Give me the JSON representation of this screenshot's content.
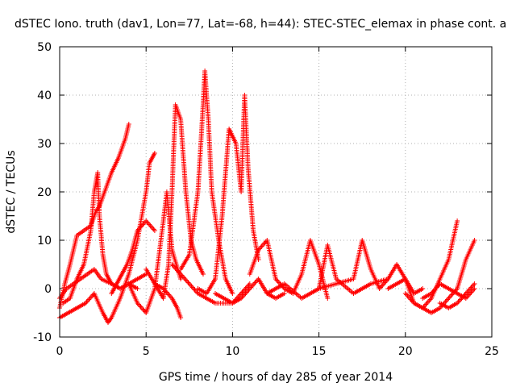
{
  "chart_data": {
    "type": "scatter",
    "title": "dSTEC Iono. truth (dav1, Lon=77, Lat=-68, h=44): STEC-STEC_elemax in phase cont. a",
    "xlabel": "GPS time / hours of day 285 of year 2014",
    "ylabel": "dSTEC  / TECUs",
    "xlim": [
      0,
      25
    ],
    "ylim": [
      -10,
      50
    ],
    "xticks": [
      0,
      5,
      10,
      15,
      20,
      25
    ],
    "yticks": [
      -10,
      0,
      10,
      20,
      30,
      40,
      50
    ],
    "grid": true,
    "marker": "+",
    "color": "#ff0000",
    "series": [
      {
        "x": [
          0.0,
          0.3,
          0.6,
          0.8,
          1.0,
          1.4,
          1.8,
          2.1,
          2.3,
          2.6,
          3.0,
          3.4,
          3.8,
          4.0
        ],
        "y": [
          -4,
          1,
          5,
          8,
          11,
          12,
          13,
          16,
          17,
          20,
          24,
          27,
          31,
          34
        ]
      },
      {
        "x": [
          0.2,
          0.6,
          1.0,
          1.4,
          1.8,
          2.0,
          2.2,
          2.3,
          2.5,
          2.7,
          3.0,
          3.5,
          4.0,
          4.5
        ],
        "y": [
          -3,
          -2,
          2,
          5,
          12,
          20,
          24,
          15,
          7,
          3,
          1,
          0,
          1,
          0
        ]
      },
      {
        "x": [
          0.0,
          0.5,
          1.0,
          1.5,
          2.0,
          2.5,
          2.8,
          3.0,
          3.5,
          4.0,
          4.5,
          5.0,
          5.2,
          5.5
        ],
        "y": [
          -6,
          -5,
          -4,
          -3,
          -1,
          -5,
          -7,
          -6,
          -2,
          3,
          10,
          20,
          26,
          28
        ]
      },
      {
        "x": [
          0.0,
          0.4,
          0.8,
          1.2,
          1.6,
          2.0,
          2.4,
          3.0,
          3.5,
          4.0,
          4.5,
          5.0
        ],
        "y": [
          -2,
          0,
          1,
          2,
          3,
          4,
          2,
          1,
          0,
          1,
          2,
          3
        ]
      },
      {
        "x": [
          3.0,
          3.3,
          3.6,
          3.9,
          4.2,
          4.5,
          5.0,
          5.5
        ],
        "y": [
          -1,
          1,
          3,
          5,
          8,
          12,
          14,
          12
        ]
      },
      {
        "x": [
          4.0,
          4.5,
          5.0,
          5.5,
          6.0,
          6.2,
          6.5,
          7.0
        ],
        "y": [
          1,
          -3,
          -5,
          0,
          14,
          20,
          8,
          2
        ]
      },
      {
        "x": [
          5.0,
          5.5,
          6.0,
          6.3,
          6.5,
          6.7,
          7.0,
          7.3,
          7.6,
          7.9,
          8.3
        ],
        "y": [
          4,
          1,
          -2,
          5,
          20,
          38,
          35,
          20,
          10,
          6,
          3
        ]
      },
      {
        "x": [
          5.5,
          6.0,
          6.5,
          6.8,
          7.0
        ],
        "y": [
          1,
          0,
          -2,
          -4,
          -6
        ]
      },
      {
        "x": [
          7.0,
          7.5,
          8.0,
          8.3,
          8.4,
          8.6,
          8.8,
          9.2,
          9.6,
          10.0
        ],
        "y": [
          4,
          7,
          20,
          38,
          45,
          35,
          20,
          10,
          2,
          -1
        ]
      },
      {
        "x": [
          8.0,
          8.5,
          9.0,
          9.4,
          9.8,
          10.2,
          10.5,
          10.7,
          10.9,
          11.2,
          11.5
        ],
        "y": [
          0,
          -1,
          2,
          15,
          33,
          30,
          20,
          40,
          25,
          12,
          6
        ]
      },
      {
        "x": [
          6.5,
          7.0,
          7.5,
          8.0,
          8.5,
          9.0,
          9.5,
          10.0,
          10.5,
          11.0
        ],
        "y": [
          5,
          3,
          1,
          -1,
          -2,
          -3,
          -3,
          -3,
          -1,
          1
        ]
      },
      {
        "x": [
          9.0,
          9.5,
          10.0,
          10.5,
          11.0,
          11.5,
          12.0,
          12.5,
          13.0
        ],
        "y": [
          -1,
          -2,
          -3,
          -2,
          0,
          2,
          -1,
          -2,
          -1
        ]
      },
      {
        "x": [
          11.0,
          11.5,
          12.0,
          12.5,
          13.0,
          13.5,
          14.0,
          14.5,
          15.0,
          15.5
        ],
        "y": [
          3,
          8,
          10,
          2,
          0,
          -1,
          3,
          10,
          5,
          -2
        ]
      },
      {
        "x": [
          12.0,
          13.0,
          14.0,
          15.0,
          16.0,
          17.0,
          17.5,
          18.0,
          18.5,
          19.0
        ],
        "y": [
          -1,
          1,
          -2,
          0,
          1,
          2,
          10,
          4,
          0,
          2
        ]
      },
      {
        "x": [
          15.0,
          15.5,
          16.0,
          17.0,
          18.0,
          19.0,
          19.5,
          20.0,
          20.5,
          21.0
        ],
        "y": [
          0,
          9,
          2,
          -1,
          1,
          2,
          5,
          2,
          -1,
          0
        ]
      },
      {
        "x": [
          19.0,
          19.5,
          20.0,
          20.5,
          21.0,
          21.5,
          22.0,
          22.5,
          23.0
        ],
        "y": [
          0,
          1,
          2,
          -3,
          -4,
          -2,
          2,
          6,
          14
        ]
      },
      {
        "x": [
          20.0,
          20.5,
          21.0,
          21.5,
          22.0,
          22.5,
          23.0,
          23.5,
          24.0
        ],
        "y": [
          -1,
          -3,
          -4,
          -5,
          -4,
          -2,
          0,
          6,
          10
        ]
      },
      {
        "x": [
          21.0,
          21.5,
          22.0,
          22.5,
          23.0,
          23.5,
          24.0
        ],
        "y": [
          -2,
          -1,
          1,
          0,
          -1,
          -2,
          0
        ]
      },
      {
        "x": [
          22.0,
          22.5,
          23.0,
          23.5,
          24.0
        ],
        "y": [
          -3,
          -4,
          -3,
          -1,
          1
        ]
      }
    ]
  }
}
